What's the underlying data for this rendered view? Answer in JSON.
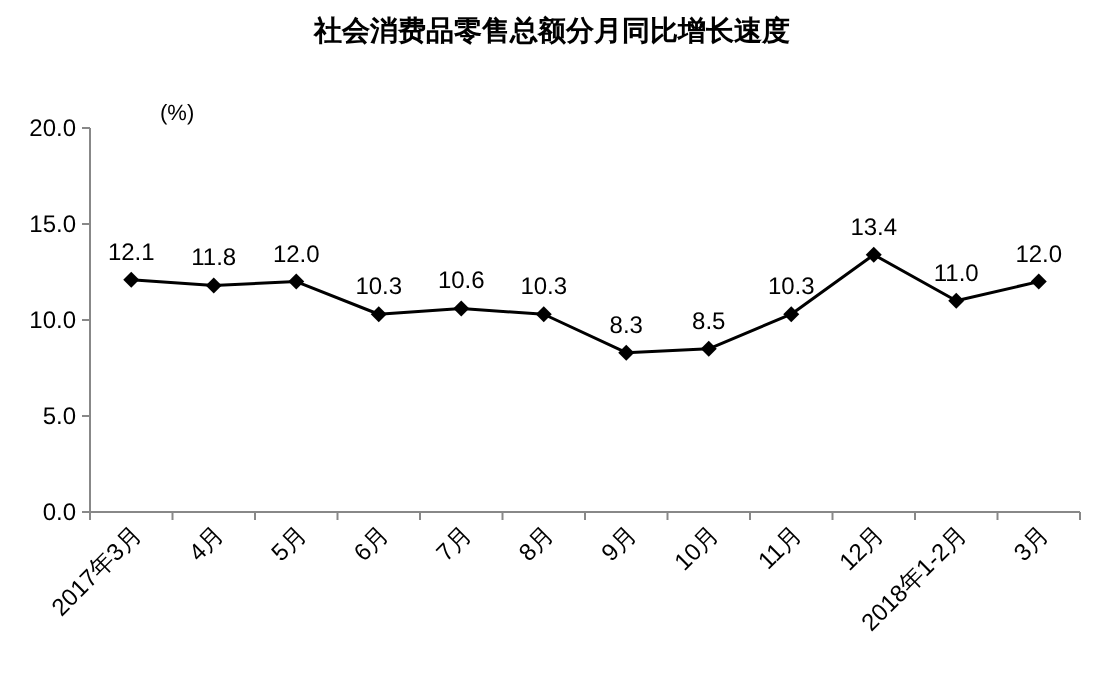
{
  "chart_data": {
    "type": "line",
    "title": "社会消费品零售总额分月同比增长速度",
    "ylabel": "(%)",
    "categories": [
      "2017年3月",
      "4月",
      "5月",
      "6月",
      "7月",
      "8月",
      "9月",
      "10月",
      "11月",
      "12月",
      "2018年1-2月",
      "3月"
    ],
    "series": [
      {
        "color": "#000000",
        "values": [
          12.1,
          11.8,
          12.0,
          10.3,
          10.6,
          10.3,
          8.3,
          8.5,
          10.3,
          13.4,
          11.0,
          12.0
        ],
        "value_labels": [
          "12.1",
          "11.8",
          "12.0",
          "10.3",
          "10.6",
          "10.3",
          "8.3",
          "8.5",
          "10.3",
          "13.4",
          "11.0",
          "12.0"
        ]
      }
    ],
    "ylim": [
      0,
      20
    ],
    "yticks": [
      {
        "value": 0,
        "label": "0.0"
      },
      {
        "value": 5,
        "label": "5.0"
      },
      {
        "value": 10,
        "label": "10.0"
      },
      {
        "value": 15,
        "label": "15.0"
      },
      {
        "value": 20,
        "label": "20.0"
      }
    ],
    "marker": "diamond",
    "line_style": "solid",
    "grid": false
  }
}
